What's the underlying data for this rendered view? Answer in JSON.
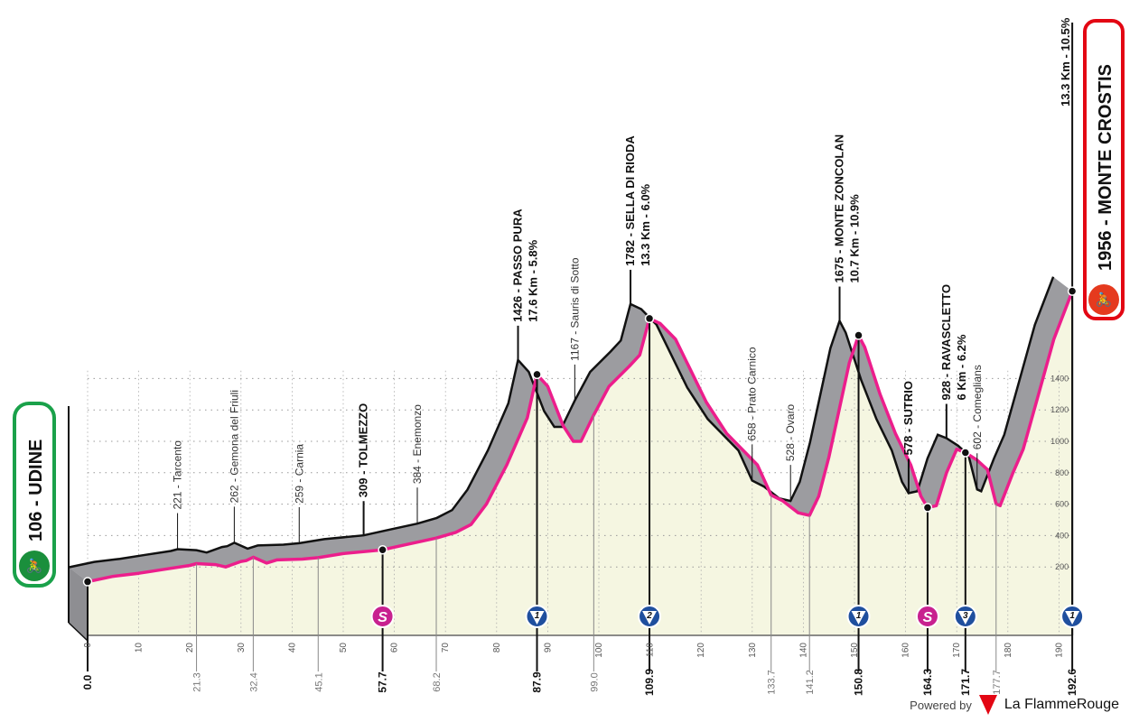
{
  "start": {
    "label": "106 - UDINE",
    "icon": "cyclist-icon",
    "color": "#1aa14a"
  },
  "finish": {
    "label": "1956 - MONTE CROSTIS",
    "climb_info": "13.3 Km - 10.5%",
    "icon": "cyclist-icon",
    "color": "#e30613"
  },
  "footer": {
    "powered_by": "Powered by",
    "brand": "La FlammeRouge",
    "logo_digit": "1"
  },
  "colors": {
    "profile_line": "#ec1e8c",
    "relief": "#9c9ca0",
    "fill": "#f5f6e1",
    "sprint": "#c8218f",
    "climb": "#1f4f9e"
  },
  "chart_data": {
    "type": "area",
    "xlim": [
      0,
      192.6
    ],
    "ylim": [
      0,
      2000
    ],
    "grid": true,
    "x_ticks": [
      "0",
      "10",
      "20",
      "30",
      "40",
      "50",
      "60",
      "70",
      "80",
      "90",
      "100",
      "110",
      "120",
      "130",
      "140",
      "150",
      "160",
      "170",
      "180",
      "190"
    ],
    "y_ticks": [
      "200",
      "400",
      "600",
      "800",
      "1000",
      "1200",
      "1400"
    ],
    "profile": {
      "km": [
        0,
        5,
        10,
        15,
        20,
        21.3,
        25,
        27,
        30,
        31,
        32.4,
        35,
        37,
        42,
        45.1,
        50,
        57.7,
        62,
        68.2,
        72,
        75,
        78,
        82,
        86,
        87.9,
        90,
        93,
        95,
        96.5,
        99,
        102,
        106,
        108,
        109.9,
        112,
        115,
        118,
        121,
        125,
        128,
        131,
        133.7,
        136,
        139,
        141.2,
        143,
        145,
        147,
        149,
        150.8,
        152,
        155,
        158,
        161,
        163,
        164.3,
        166,
        168,
        170,
        171.7,
        174,
        176,
        177.7,
        178.5,
        181,
        183,
        186,
        189,
        192.6
      ],
      "elevation": [
        106,
        140,
        160,
        185,
        210,
        221,
        215,
        200,
        235,
        240,
        262,
        225,
        245,
        250,
        259,
        285,
        309,
        340,
        384,
        420,
        470,
        600,
        850,
        1150,
        1426,
        1350,
        1100,
        1000,
        1000,
        1167,
        1350,
        1480,
        1550,
        1782,
        1750,
        1650,
        1450,
        1250,
        1050,
        950,
        850,
        658,
        620,
        545,
        528,
        650,
        900,
        1200,
        1500,
        1675,
        1600,
        1300,
        1050,
        850,
        650,
        578,
        590,
        800,
        950,
        928,
        880,
        820,
        602,
        590,
        800,
        950,
        1300,
        1650,
        1956
      ]
    },
    "waypoints": [
      {
        "km": 21.3,
        "label": "221 - Tarcento",
        "style": "minor"
      },
      {
        "km": 32.4,
        "label": "262 - Gemona del Friuli",
        "style": "minor"
      },
      {
        "km": 45.1,
        "label": "259 - Carnia",
        "style": "minor"
      },
      {
        "km": 57.7,
        "label": "309 - TOLMEZZO",
        "style": "major"
      },
      {
        "km": 68.2,
        "label": "384 - Enemonzo",
        "style": "minor"
      },
      {
        "km": 87.9,
        "label": "1426 - PASSO PURA",
        "detail": "17.6 Km - 5.8%",
        "style": "climb"
      },
      {
        "km": 99.0,
        "label": "1167 - Sauris di Sotto",
        "style": "minor"
      },
      {
        "km": 109.9,
        "label": "1782 - SELLA DI RIODA",
        "detail": "13.3 Km - 6.0%",
        "style": "climb"
      },
      {
        "km": 133.7,
        "label": "658 - Prato Carnico",
        "style": "minor"
      },
      {
        "km": 141.2,
        "label": "528 - Ovaro",
        "style": "minor"
      },
      {
        "km": 150.8,
        "label": "1675 - MONTE ZONCOLAN",
        "detail": "10.7 Km - 10.9%",
        "style": "climb"
      },
      {
        "km": 164.3,
        "label": "578 - SUTRIO",
        "style": "major"
      },
      {
        "km": 171.7,
        "label": "928 - RAVASCLETTO",
        "detail": "6 Km - 6.2%",
        "style": "climb"
      },
      {
        "km": 177.7,
        "label": "602 - Comeglians",
        "style": "minor"
      }
    ],
    "distance_labels": [
      {
        "km": 0,
        "text": "0.0",
        "major": true
      },
      {
        "km": 21.3,
        "text": "21.3",
        "major": false
      },
      {
        "km": 32.4,
        "text": "32.4",
        "major": false
      },
      {
        "km": 45.1,
        "text": "45.1",
        "major": false
      },
      {
        "km": 57.7,
        "text": "57.7",
        "major": true
      },
      {
        "km": 68.2,
        "text": "68.2",
        "major": false
      },
      {
        "km": 87.9,
        "text": "87.9",
        "major": true
      },
      {
        "km": 99.0,
        "text": "99.0",
        "major": false
      },
      {
        "km": 109.9,
        "text": "109.9",
        "major": true
      },
      {
        "km": 133.7,
        "text": "133.7",
        "major": false
      },
      {
        "km": 141.2,
        "text": "141.2",
        "major": false
      },
      {
        "km": 150.8,
        "text": "150.8",
        "major": true
      },
      {
        "km": 164.3,
        "text": "164.3",
        "major": true
      },
      {
        "km": 171.7,
        "text": "171.7",
        "major": true
      },
      {
        "km": 177.7,
        "text": "177.7",
        "major": false
      },
      {
        "km": 192.6,
        "text": "192.6",
        "major": true
      }
    ],
    "markers": [
      {
        "km": 57.7,
        "type": "sprint",
        "text": "S"
      },
      {
        "km": 87.9,
        "type": "climb",
        "text": "1"
      },
      {
        "km": 109.9,
        "type": "climb",
        "text": "2"
      },
      {
        "km": 150.8,
        "type": "climb",
        "text": "1"
      },
      {
        "km": 164.3,
        "type": "sprint",
        "text": "S"
      },
      {
        "km": 171.7,
        "type": "climb",
        "text": "3"
      },
      {
        "km": 192.6,
        "type": "climb",
        "text": "1"
      }
    ]
  }
}
